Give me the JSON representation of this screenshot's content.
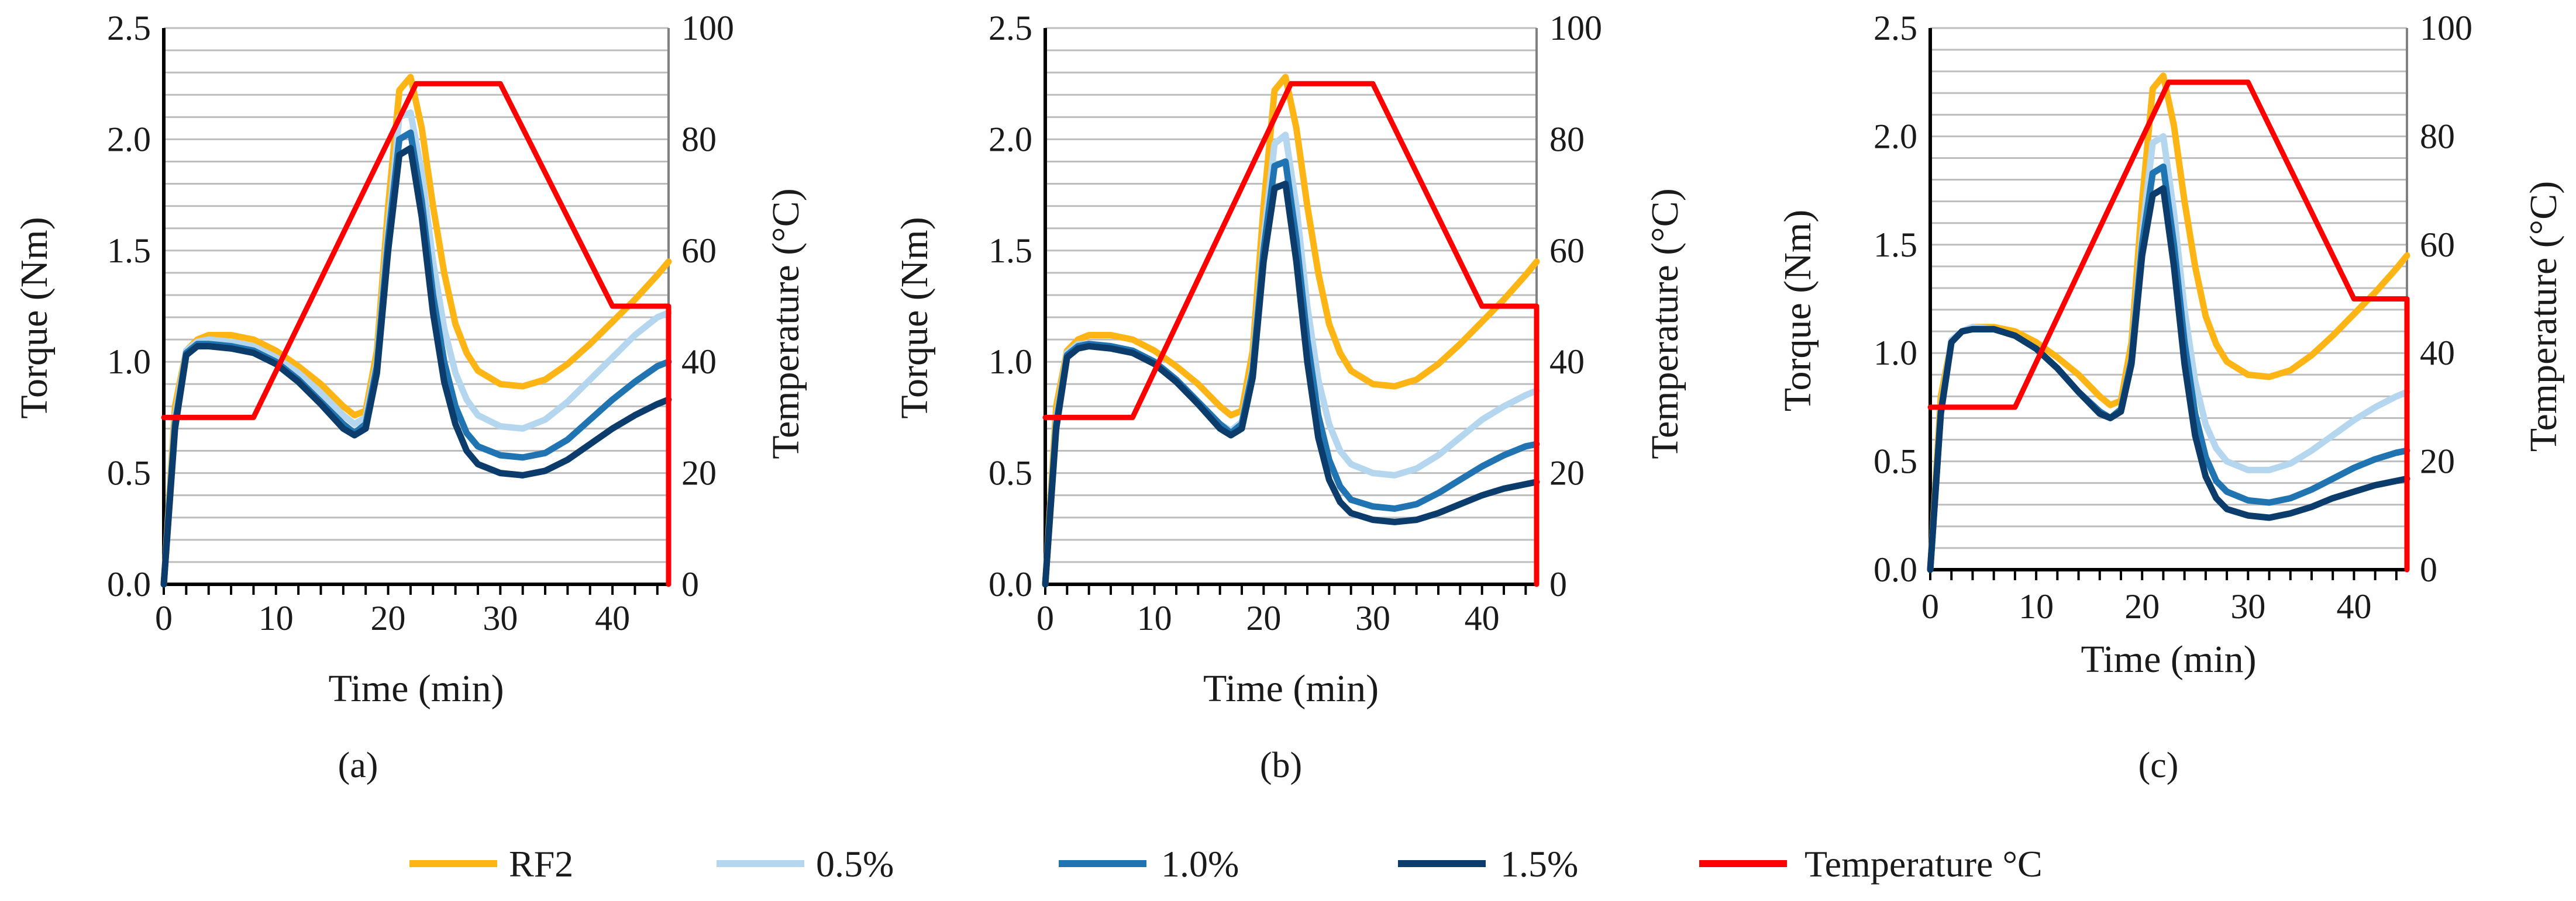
{
  "colors": {
    "rf2": "#FDB515",
    "p05": "#B4D6EE",
    "p10": "#1F74B1",
    "p15": "#0B3C6B",
    "temperature": "#FF0000",
    "grid": "#BDBDBD",
    "axis": "#000000"
  },
  "chart_data": [
    {
      "type": "line",
      "panel_label": "(a)",
      "xlabel": "Time (min)",
      "ylabel": "Torque (Nm)",
      "y2label": "Temperature (°C)",
      "xlim": [
        0,
        45
      ],
      "ylim": [
        0,
        2.5
      ],
      "y2lim": [
        0,
        100
      ],
      "xticks": [
        "0",
        "10",
        "20",
        "30",
        "40"
      ],
      "yticks": [
        "0.0",
        "0.5",
        "1.0",
        "1.5",
        "2.0",
        "2.5"
      ],
      "y2ticks": [
        "0",
        "20",
        "40",
        "60",
        "80",
        "100"
      ],
      "series": [
        {
          "name": "RF2",
          "color_key": "rf2",
          "x": [
            0,
            1,
            2,
            3,
            4,
            6,
            8,
            10,
            12,
            14,
            16,
            17,
            18,
            19,
            20,
            21,
            22,
            23,
            24,
            25,
            26,
            27,
            28,
            30,
            32,
            34,
            36,
            38,
            40,
            42,
            44,
            45
          ],
          "y": [
            0,
            0.8,
            1.05,
            1.1,
            1.12,
            1.12,
            1.1,
            1.05,
            0.98,
            0.9,
            0.8,
            0.76,
            0.78,
            1.05,
            1.7,
            2.22,
            2.28,
            2.05,
            1.7,
            1.4,
            1.17,
            1.04,
            0.96,
            0.9,
            0.89,
            0.92,
            0.99,
            1.08,
            1.18,
            1.28,
            1.39,
            1.45
          ]
        },
        {
          "name": "0.5%",
          "color_key": "p05",
          "x": [
            0,
            1,
            2,
            3,
            4,
            6,
            8,
            10,
            12,
            14,
            16,
            17,
            18,
            19,
            20,
            21,
            22,
            23,
            24,
            25,
            26,
            27,
            28,
            30,
            32,
            34,
            36,
            38,
            40,
            42,
            44,
            45
          ],
          "y": [
            0,
            0.75,
            1.05,
            1.09,
            1.1,
            1.09,
            1.07,
            1.02,
            0.95,
            0.86,
            0.76,
            0.72,
            0.75,
            1.0,
            1.6,
            2.1,
            2.12,
            1.85,
            1.45,
            1.15,
            0.95,
            0.83,
            0.76,
            0.71,
            0.7,
            0.74,
            0.82,
            0.92,
            1.02,
            1.12,
            1.2,
            1.22
          ]
        },
        {
          "name": "1.0%",
          "color_key": "p10",
          "x": [
            0,
            1,
            2,
            3,
            4,
            6,
            8,
            10,
            12,
            14,
            16,
            17,
            18,
            19,
            20,
            21,
            22,
            23,
            24,
            25,
            26,
            27,
            28,
            30,
            32,
            34,
            36,
            38,
            40,
            42,
            44,
            45
          ],
          "y": [
            0,
            0.72,
            1.04,
            1.08,
            1.08,
            1.07,
            1.05,
            1.0,
            0.92,
            0.82,
            0.72,
            0.68,
            0.72,
            0.98,
            1.55,
            2.0,
            2.03,
            1.72,
            1.3,
            1.0,
            0.8,
            0.68,
            0.62,
            0.58,
            0.57,
            0.59,
            0.65,
            0.74,
            0.83,
            0.91,
            0.98,
            1.0
          ]
        },
        {
          "name": "1.5%",
          "color_key": "p15",
          "x": [
            0,
            1,
            2,
            3,
            4,
            6,
            8,
            10,
            12,
            14,
            16,
            17,
            18,
            19,
            20,
            21,
            22,
            23,
            24,
            25,
            26,
            27,
            28,
            30,
            32,
            34,
            36,
            38,
            40,
            42,
            44,
            45
          ],
          "y": [
            0,
            0.7,
            1.03,
            1.07,
            1.07,
            1.06,
            1.04,
            0.99,
            0.91,
            0.81,
            0.7,
            0.67,
            0.7,
            0.95,
            1.5,
            1.93,
            1.96,
            1.65,
            1.22,
            0.91,
            0.72,
            0.6,
            0.54,
            0.5,
            0.49,
            0.51,
            0.56,
            0.63,
            0.7,
            0.76,
            0.81,
            0.83
          ]
        },
        {
          "name": "Temperature °C",
          "axis": "y2",
          "color_key": "temperature",
          "x": [
            0,
            8,
            22.5,
            30,
            40,
            45,
            45
          ],
          "y": [
            30,
            30,
            90,
            90,
            50,
            50,
            0
          ]
        }
      ]
    },
    {
      "type": "line",
      "panel_label": "(b)",
      "xlabel": "Time (min)",
      "ylabel": "Torque (Nm)",
      "y2label": "Temperature (°C)",
      "xlim": [
        0,
        45
      ],
      "ylim": [
        0,
        2.5
      ],
      "y2lim": [
        0,
        100
      ],
      "xticks": [
        "0",
        "10",
        "20",
        "30",
        "40"
      ],
      "yticks": [
        "0.0",
        "0.5",
        "1.0",
        "1.5",
        "2.0",
        "2.5"
      ],
      "y2ticks": [
        "0",
        "20",
        "40",
        "60",
        "80",
        "100"
      ],
      "series": [
        {
          "name": "RF2",
          "color_key": "rf2",
          "x": [
            0,
            1,
            2,
            3,
            4,
            6,
            8,
            10,
            12,
            14,
            16,
            17,
            18,
            19,
            20,
            21,
            22,
            23,
            24,
            25,
            26,
            27,
            28,
            30,
            32,
            34,
            36,
            38,
            40,
            42,
            44,
            45
          ],
          "y": [
            0,
            0.8,
            1.05,
            1.1,
            1.12,
            1.12,
            1.1,
            1.05,
            0.98,
            0.9,
            0.8,
            0.76,
            0.78,
            1.05,
            1.7,
            2.22,
            2.28,
            2.05,
            1.7,
            1.4,
            1.17,
            1.04,
            0.96,
            0.9,
            0.89,
            0.92,
            0.99,
            1.08,
            1.18,
            1.28,
            1.39,
            1.45
          ]
        },
        {
          "name": "0.5%",
          "color_key": "p05",
          "x": [
            0,
            1,
            2,
            3,
            4,
            6,
            8,
            10,
            12,
            14,
            16,
            17,
            18,
            19,
            20,
            21,
            22,
            23,
            24,
            25,
            26,
            27,
            28,
            30,
            32,
            34,
            36,
            38,
            40,
            42,
            44,
            45
          ],
          "y": [
            0,
            0.74,
            1.04,
            1.08,
            1.08,
            1.07,
            1.05,
            1.0,
            0.92,
            0.82,
            0.72,
            0.69,
            0.73,
            0.98,
            1.55,
            1.98,
            2.02,
            1.7,
            1.25,
            0.92,
            0.72,
            0.6,
            0.54,
            0.5,
            0.49,
            0.52,
            0.58,
            0.66,
            0.74,
            0.8,
            0.85,
            0.87
          ]
        },
        {
          "name": "1.0%",
          "color_key": "p10",
          "x": [
            0,
            1,
            2,
            3,
            4,
            6,
            8,
            10,
            12,
            14,
            16,
            17,
            18,
            19,
            20,
            21,
            22,
            23,
            24,
            25,
            26,
            27,
            28,
            30,
            32,
            34,
            36,
            38,
            40,
            42,
            44,
            45
          ],
          "y": [
            0,
            0.72,
            1.03,
            1.07,
            1.08,
            1.07,
            1.05,
            1.0,
            0.92,
            0.82,
            0.72,
            0.68,
            0.72,
            0.96,
            1.5,
            1.88,
            1.9,
            1.55,
            1.1,
            0.76,
            0.56,
            0.44,
            0.38,
            0.35,
            0.34,
            0.36,
            0.41,
            0.47,
            0.53,
            0.58,
            0.62,
            0.63
          ]
        },
        {
          "name": "1.5%",
          "color_key": "p15",
          "x": [
            0,
            1,
            2,
            3,
            4,
            6,
            8,
            10,
            12,
            14,
            16,
            17,
            18,
            19,
            20,
            21,
            22,
            23,
            24,
            25,
            26,
            27,
            28,
            30,
            32,
            34,
            36,
            38,
            40,
            42,
            44,
            45
          ],
          "y": [
            0,
            0.7,
            1.02,
            1.06,
            1.07,
            1.06,
            1.04,
            0.99,
            0.91,
            0.81,
            0.7,
            0.67,
            0.7,
            0.93,
            1.45,
            1.78,
            1.8,
            1.45,
            1.0,
            0.66,
            0.47,
            0.37,
            0.32,
            0.29,
            0.28,
            0.29,
            0.32,
            0.36,
            0.4,
            0.43,
            0.45,
            0.46
          ]
        },
        {
          "name": "Temperature °C",
          "axis": "y2",
          "color_key": "temperature",
          "x": [
            0,
            8,
            22.5,
            30,
            40,
            45,
            45
          ],
          "y": [
            30,
            30,
            90,
            90,
            50,
            50,
            0
          ]
        }
      ]
    },
    {
      "type": "line",
      "panel_label": "(c)",
      "xlabel": "Time (min)",
      "ylabel": "Torque (Nm)",
      "y2label": "Temperature (°C)",
      "xlim": [
        0,
        45
      ],
      "ylim": [
        0,
        2.5
      ],
      "y2lim": [
        0,
        100
      ],
      "xticks": [
        "0",
        "10",
        "20",
        "30",
        "40"
      ],
      "yticks": [
        "0.0",
        "0.5",
        "1.0",
        "1.5",
        "2.0",
        "2.5"
      ],
      "y2ticks": [
        "0",
        "20",
        "40",
        "60",
        "80",
        "100"
      ],
      "series": [
        {
          "name": "RF2",
          "color_key": "rf2",
          "x": [
            0,
            1,
            2,
            3,
            4,
            6,
            8,
            10,
            12,
            14,
            16,
            17,
            18,
            19,
            20,
            21,
            22,
            23,
            24,
            25,
            26,
            27,
            28,
            30,
            32,
            34,
            36,
            38,
            40,
            42,
            44,
            45
          ],
          "y": [
            0,
            0.8,
            1.05,
            1.1,
            1.12,
            1.12,
            1.1,
            1.05,
            0.98,
            0.9,
            0.8,
            0.76,
            0.78,
            1.05,
            1.7,
            2.22,
            2.28,
            2.05,
            1.7,
            1.4,
            1.17,
            1.04,
            0.96,
            0.9,
            0.89,
            0.92,
            0.99,
            1.08,
            1.18,
            1.28,
            1.39,
            1.45
          ]
        },
        {
          "name": "0.5%",
          "color_key": "p05",
          "x": [
            0,
            1,
            2,
            3,
            4,
            6,
            8,
            10,
            12,
            14,
            16,
            17,
            18,
            19,
            20,
            21,
            22,
            23,
            24,
            25,
            26,
            27,
            28,
            30,
            32,
            34,
            36,
            38,
            40,
            42,
            44,
            45
          ],
          "y": [
            0,
            0.74,
            1.06,
            1.1,
            1.12,
            1.11,
            1.08,
            1.02,
            0.93,
            0.82,
            0.73,
            0.7,
            0.74,
            0.98,
            1.55,
            1.97,
            2.0,
            1.65,
            1.2,
            0.87,
            0.67,
            0.56,
            0.5,
            0.46,
            0.46,
            0.49,
            0.55,
            0.62,
            0.69,
            0.75,
            0.8,
            0.82
          ]
        },
        {
          "name": "1.0%",
          "color_key": "p10",
          "x": [
            0,
            1,
            2,
            3,
            4,
            6,
            8,
            10,
            12,
            14,
            16,
            17,
            18,
            19,
            20,
            21,
            22,
            23,
            24,
            25,
            26,
            27,
            28,
            30,
            32,
            34,
            36,
            38,
            40,
            42,
            44,
            45
          ],
          "y": [
            0,
            0.73,
            1.05,
            1.1,
            1.11,
            1.11,
            1.08,
            1.02,
            0.93,
            0.82,
            0.73,
            0.7,
            0.74,
            0.97,
            1.5,
            1.83,
            1.86,
            1.5,
            1.05,
            0.72,
            0.52,
            0.41,
            0.36,
            0.32,
            0.31,
            0.33,
            0.37,
            0.42,
            0.47,
            0.51,
            0.54,
            0.55
          ]
        },
        {
          "name": "1.5%",
          "color_key": "p15",
          "x": [
            0,
            1,
            2,
            3,
            4,
            6,
            8,
            10,
            12,
            14,
            16,
            17,
            18,
            19,
            20,
            21,
            22,
            23,
            24,
            25,
            26,
            27,
            28,
            30,
            32,
            34,
            36,
            38,
            40,
            42,
            44,
            45
          ],
          "y": [
            0,
            0.72,
            1.05,
            1.1,
            1.11,
            1.11,
            1.08,
            1.02,
            0.93,
            0.82,
            0.72,
            0.7,
            0.73,
            0.95,
            1.45,
            1.73,
            1.76,
            1.4,
            0.95,
            0.62,
            0.43,
            0.33,
            0.28,
            0.25,
            0.24,
            0.26,
            0.29,
            0.33,
            0.36,
            0.39,
            0.41,
            0.42
          ]
        },
        {
          "name": "Temperature °C",
          "axis": "y2",
          "color_key": "temperature",
          "x": [
            0,
            8,
            22.5,
            30,
            40,
            45,
            45
          ],
          "y": [
            30,
            30,
            90,
            90,
            50,
            50,
            0
          ]
        }
      ]
    }
  ],
  "legend": [
    {
      "label": "RF2",
      "color_key": "rf2"
    },
    {
      "label": "0.5%",
      "color_key": "p05"
    },
    {
      "label": "1.0%",
      "color_key": "p10"
    },
    {
      "label": "1.5%",
      "color_key": "p15"
    },
    {
      "label": "Temperature °C",
      "color_key": "temperature"
    }
  ]
}
